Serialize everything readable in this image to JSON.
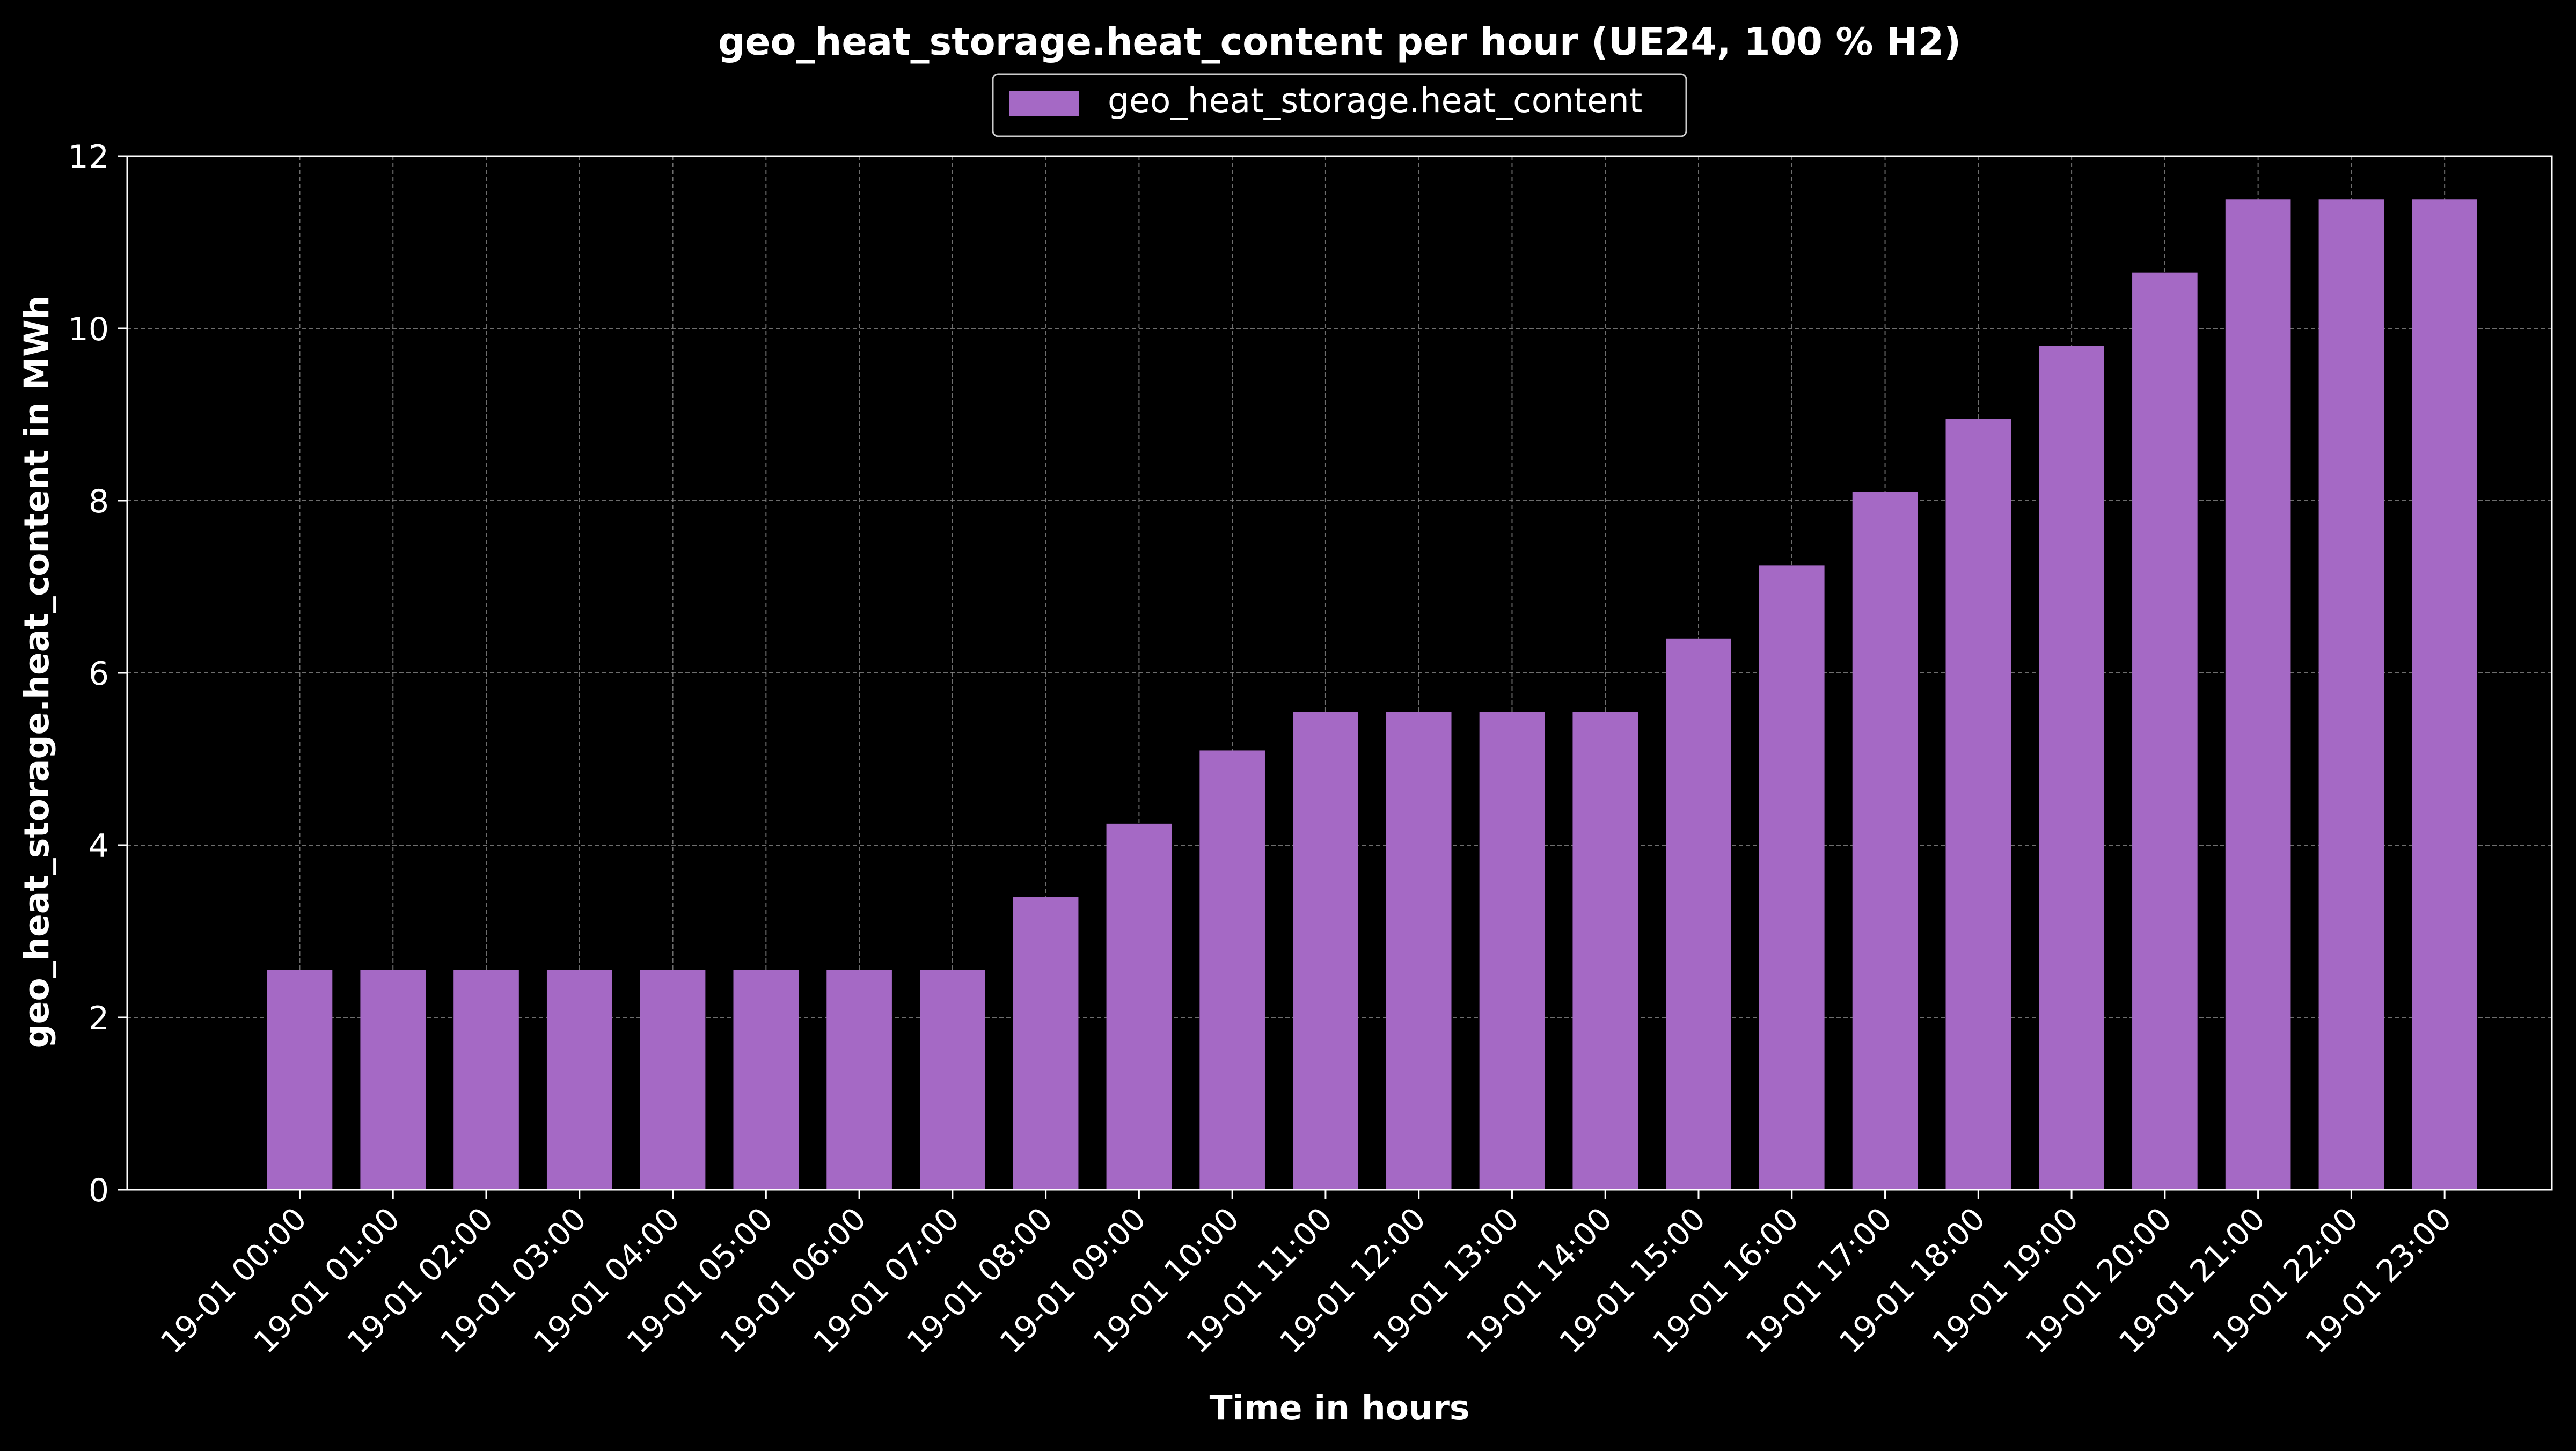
{
  "chart_data": {
    "type": "bar",
    "title": "geo_heat_storage.heat_content per hour (UE24, 100 % H2)",
    "xlabel": "Time in hours",
    "ylabel": "geo_heat_storage.heat_content in MWh",
    "ylim": [
      0,
      12
    ],
    "yticks": [
      0,
      2,
      4,
      6,
      8,
      10,
      12
    ],
    "grid": true,
    "legend_position": "top-center",
    "categories": [
      "19-01 00:00",
      "19-01 01:00",
      "19-01 02:00",
      "19-01 03:00",
      "19-01 04:00",
      "19-01 05:00",
      "19-01 06:00",
      "19-01 07:00",
      "19-01 08:00",
      "19-01 09:00",
      "19-01 10:00",
      "19-01 11:00",
      "19-01 12:00",
      "19-01 13:00",
      "19-01 14:00",
      "19-01 15:00",
      "19-01 16:00",
      "19-01 17:00",
      "19-01 18:00",
      "19-01 19:00",
      "19-01 20:00",
      "19-01 21:00",
      "19-01 22:00",
      "19-01 23:00"
    ],
    "series": [
      {
        "name": "geo_heat_storage.heat_content",
        "color": "#a569c5",
        "values": [
          2.55,
          2.55,
          2.55,
          2.55,
          2.55,
          2.55,
          2.55,
          2.55,
          3.4,
          4.25,
          5.1,
          5.55,
          5.55,
          5.55,
          5.55,
          6.4,
          7.25,
          8.1,
          8.95,
          9.8,
          10.65,
          11.5,
          11.5,
          11.5
        ]
      }
    ],
    "colors": {
      "background": "#000000",
      "axes": "#ffffff",
      "grid": "#8a8a8a",
      "bar": "#a569c5"
    }
  }
}
